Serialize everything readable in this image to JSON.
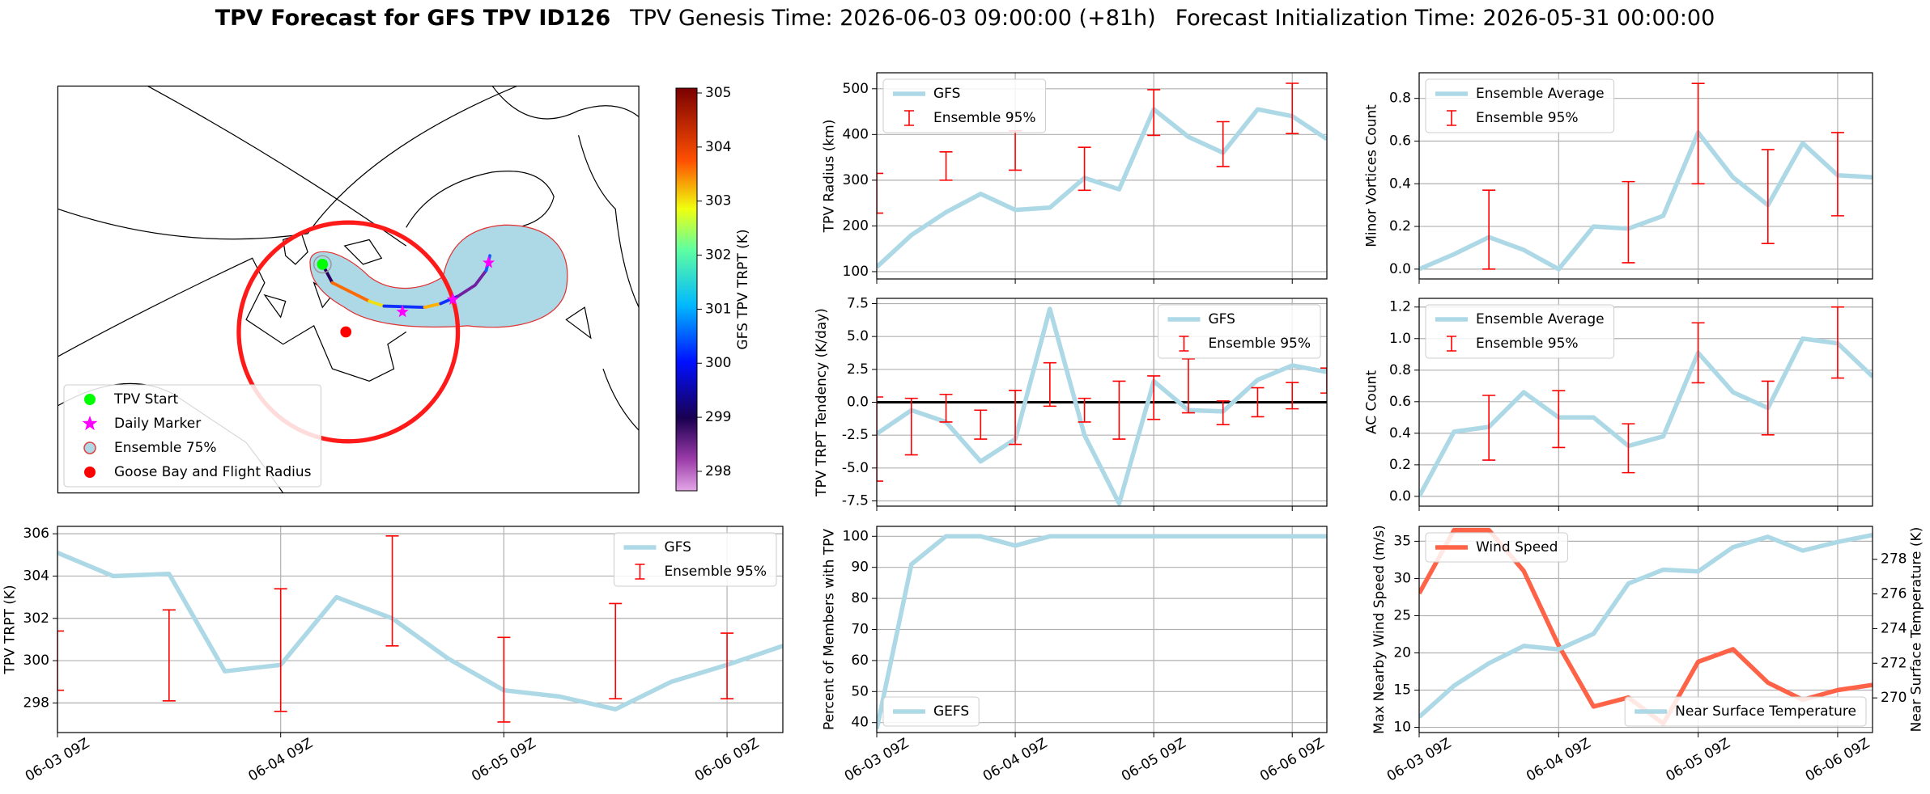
{
  "title": "TPV Forecast for GFS TPV ID126",
  "subtitle": "TPV Genesis Time: 2026-06-03 09:00:00 (+81h)",
  "subtitle2": "Forecast Initialization Time: 2026-05-31 00:00:00",
  "chart_data": [
    {
      "type": "map",
      "legend": [
        "TPV Start",
        "Daily Marker",
        "Ensemble 75%",
        "Goose Bay and Flight Radius"
      ],
      "legend_colors": [
        "#00ff00",
        "#ff00ff",
        "#add8e6",
        "#ff0000"
      ],
      "legend_loc": "lower left",
      "colorbar_label": "GFS TPV TRPT (K)",
      "clim": [
        297.64,
        305.09
      ],
      "cticks": [
        298,
        299,
        300,
        301,
        302,
        303,
        304,
        305
      ]
    },
    {
      "type": "line",
      "ylabel": "TPV Radius (km)",
      "x": [
        0,
        6,
        12,
        18,
        24,
        30,
        36,
        42,
        48,
        54,
        60,
        66,
        72,
        78
      ],
      "xlim": [
        0,
        78
      ],
      "xticks": [
        0,
        24,
        48,
        72
      ],
      "xtick_labels": false,
      "ylim": [
        84,
        535
      ],
      "yticks": [
        100,
        200,
        300,
        400,
        500
      ],
      "grid": true,
      "legend": "upper left",
      "series": [
        {
          "name": "GFS",
          "color": "#add8e6",
          "values": [
            110,
            180,
            230,
            270,
            235,
            240,
            305,
            280,
            455,
            395,
            360,
            455,
            440,
            390
          ]
        }
      ],
      "errorbars": {
        "name": "Ensemble 95%",
        "color": "#ff0000",
        "x": [
          0,
          12,
          24,
          36,
          48,
          60,
          72
        ],
        "low": [
          228,
          300,
          322,
          278,
          398,
          330,
          402
        ],
        "high": [
          315,
          362,
          408,
          372,
          498,
          428,
          512
        ]
      }
    },
    {
      "type": "line",
      "ylabel": "Minor Vortices Count",
      "x": [
        0,
        6,
        12,
        18,
        24,
        30,
        36,
        42,
        48,
        54,
        60,
        66,
        72,
        78
      ],
      "xlim": [
        0,
        78
      ],
      "xticks": [
        0,
        24,
        48,
        72
      ],
      "xtick_labels": false,
      "ylim": [
        -0.046,
        0.92
      ],
      "yticks": [
        {
          "value": 0,
          "label": "0.0"
        },
        0.2,
        0.4,
        0.6,
        0.8
      ],
      "grid": true,
      "legend": "upper left",
      "series": [
        {
          "name": "Ensemble Average",
          "color": "#add8e6",
          "values": [
            0.0,
            0.07,
            0.15,
            0.09,
            0.0,
            0.2,
            0.19,
            0.25,
            0.64,
            0.43,
            0.3,
            0.59,
            0.44,
            0.43
          ]
        }
      ],
      "errorbars": {
        "name": "Ensemble 95%",
        "color": "#ff0000",
        "x": [
          12,
          36,
          48,
          60,
          72
        ],
        "low": [
          0,
          0.03,
          0.4,
          0.12,
          0.25
        ],
        "high": [
          0.37,
          0.41,
          0.87,
          0.56,
          0.64
        ]
      }
    },
    {
      "type": "line",
      "ylabel": "TPV TRPT Tendency (K/day)",
      "x": [
        0,
        6,
        12,
        18,
        24,
        30,
        36,
        42,
        48,
        54,
        60,
        66,
        72,
        78
      ],
      "xlim": [
        0,
        78
      ],
      "xticks": [
        0,
        24,
        48,
        72
      ],
      "xtick_labels": false,
      "ylim": [
        -7.9,
        7.9
      ],
      "yticks": [
        -7.5,
        {
          "value": -5,
          "label": "-5.0"
        },
        -2.5,
        {
          "value": 0,
          "label": "0.0"
        },
        2.5,
        {
          "value": 5,
          "label": "5.0"
        },
        7.5
      ],
      "grid": true,
      "legend": "upper right",
      "hline": 0,
      "series": [
        {
          "name": "GFS",
          "color": "#add8e6",
          "values": [
            -2.4,
            -0.6,
            -1.5,
            -4.5,
            -2.8,
            7.1,
            -2.5,
            -7.7,
            1.6,
            -0.6,
            -0.7,
            1.7,
            2.8,
            2.3
          ]
        }
      ],
      "errorbars": {
        "name": "Ensemble 95%",
        "color": "#ff0000",
        "x": [
          0,
          6,
          12,
          18,
          24,
          30,
          36,
          42,
          48,
          54,
          60,
          66,
          72,
          78
        ],
        "low": [
          -6.0,
          -4.0,
          -1.5,
          -2.8,
          -3.2,
          -0.3,
          -1.5,
          -2.8,
          -1.3,
          -0.8,
          -1.7,
          -1.1,
          -0.5,
          0.7
        ],
        "high": [
          0.4,
          0.3,
          0.6,
          -0.6,
          0.9,
          3.0,
          0.3,
          1.6,
          2.0,
          3.3,
          0.1,
          1.1,
          1.5,
          2.6
        ]
      }
    },
    {
      "type": "line",
      "ylabel": "AC Count",
      "x": [
        0,
        6,
        12,
        18,
        24,
        30,
        36,
        42,
        48,
        54,
        60,
        66,
        72,
        78
      ],
      "xlim": [
        0,
        78
      ],
      "xticks": [
        0,
        24,
        48,
        72
      ],
      "xtick_labels": false,
      "ylim": [
        -0.062,
        1.255
      ],
      "yticks": [
        {
          "value": 0,
          "label": "0.0"
        },
        0.2,
        0.4,
        0.6,
        0.8,
        {
          "value": 1,
          "label": "1.0"
        },
        1.2
      ],
      "grid": true,
      "legend": "upper left",
      "series": [
        {
          "name": "Ensemble Average",
          "color": "#add8e6",
          "values": [
            0.0,
            0.41,
            0.44,
            0.66,
            0.5,
            0.5,
            0.32,
            0.38,
            0.91,
            0.66,
            0.56,
            1.0,
            0.97,
            0.76
          ]
        }
      ],
      "errorbars": {
        "name": "Ensemble 95%",
        "color": "#ff0000",
        "x": [
          12,
          24,
          36,
          48,
          60,
          72
        ],
        "low": [
          0.23,
          0.31,
          0.15,
          0.72,
          0.39,
          0.75
        ],
        "high": [
          0.64,
          0.67,
          0.46,
          1.1,
          0.73,
          1.2
        ]
      }
    },
    {
      "type": "line",
      "ylabel": "TPV TRPT (K)",
      "x": [
        0,
        6,
        12,
        18,
        24,
        30,
        36,
        42,
        48,
        54,
        60,
        66,
        72,
        78
      ],
      "xlim": [
        0,
        78
      ],
      "xticks": [
        {
          "value": 0,
          "label": "06-03 09Z"
        },
        {
          "value": 24,
          "label": "06-04 09Z"
        },
        {
          "value": 48,
          "label": "06-05 09Z"
        },
        {
          "value": 72,
          "label": "06-06 09Z"
        }
      ],
      "ylim": [
        296.6,
        306.35
      ],
      "yticks": [
        298,
        300,
        302,
        304,
        306
      ],
      "grid": true,
      "legend": "upper right",
      "series": [
        {
          "name": "GFS",
          "color": "#add8e6",
          "values": [
            305.1,
            304.0,
            304.1,
            299.5,
            299.8,
            303.0,
            302.0,
            300.1,
            298.6,
            298.3,
            297.7,
            299.0,
            299.8,
            300.7
          ]
        }
      ],
      "errorbars": {
        "name": "Ensemble 95%",
        "color": "#ff0000",
        "x": [
          0,
          12,
          24,
          36,
          48,
          60,
          72
        ],
        "low": [
          298.6,
          298.1,
          297.6,
          300.7,
          297.1,
          298.2,
          298.2
        ],
        "high": [
          301.4,
          302.4,
          303.4,
          305.9,
          301.1,
          302.7,
          301.3
        ]
      }
    },
    {
      "type": "line",
      "ylabel": "Percent of Members with TPV",
      "x": [
        0,
        6,
        12,
        18,
        24,
        30,
        36,
        42,
        48,
        54,
        60,
        66,
        72,
        78
      ],
      "xlim": [
        0,
        78
      ],
      "xticks": [
        {
          "value": 0,
          "label": "06-03 09Z"
        },
        {
          "value": 24,
          "label": "06-04 09Z"
        },
        {
          "value": 48,
          "label": "06-05 09Z"
        },
        {
          "value": 72,
          "label": "06-06 09Z"
        }
      ],
      "ylim": [
        36.8,
        103.2
      ],
      "yticks": [
        40,
        50,
        60,
        70,
        80,
        90,
        100
      ],
      "grid": true,
      "legend": "lower left",
      "series": [
        {
          "name": "GEFS",
          "color": "#add8e6",
          "values": [
            38,
            91,
            100,
            100,
            97,
            100,
            100,
            100,
            100,
            100,
            100,
            100,
            100,
            100
          ]
        }
      ]
    },
    {
      "type": "line",
      "ylabel": "Max Nearby Wind Speed (m/s)",
      "ylabel_color": "#ff6347",
      "y2label": "Near Surface Temperature (K)",
      "y2label_color": "#4169e1",
      "x": [
        0,
        6,
        12,
        18,
        24,
        30,
        36,
        42,
        48,
        54,
        60,
        66,
        72,
        78
      ],
      "xlim": [
        0,
        78
      ],
      "xticks": [
        {
          "value": 0,
          "label": "06-03 09Z"
        },
        {
          "value": 24,
          "label": "06-04 09Z"
        },
        {
          "value": 48,
          "label": "06-05 09Z"
        },
        {
          "value": 72,
          "label": "06-06 09Z"
        }
      ],
      "ylim": [
        9.3,
        37
      ],
      "yticks": [
        10,
        15,
        20,
        25,
        30,
        35
      ],
      "y2lim": [
        268,
        279.9
      ],
      "y2ticks": [
        270,
        272,
        274,
        276,
        278
      ],
      "grid": true,
      "series": [
        {
          "name": "Wind Speed",
          "color": "#ff6347",
          "legend": "upper left",
          "values": [
            28,
            36.5,
            36.5,
            31,
            21,
            12.8,
            14,
            10.5,
            18.8,
            20.5,
            16,
            13.7,
            15,
            15.7
          ]
        },
        {
          "name": "Near Surface Temperature",
          "color": "#add8e6",
          "axis": "y2",
          "legend": "lower right",
          "values": [
            268.9,
            270.7,
            272.0,
            273.0,
            272.8,
            273.7,
            276.6,
            277.4,
            277.3,
            278.7,
            279.3,
            278.5,
            279.0,
            279.4
          ]
        }
      ]
    }
  ]
}
